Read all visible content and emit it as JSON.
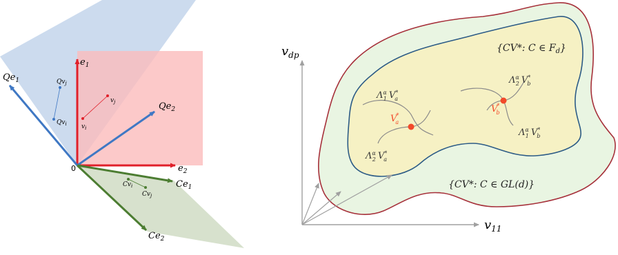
{
  "left_diagram": {
    "colors": {
      "blue_plane": "#c6d7ec",
      "red_plane": "#fbbcbc",
      "green_plane": "#d5dfca",
      "red_axis": "#e0202a",
      "blue_axis": "#3f78c4",
      "green_axis": "#4c7d32"
    },
    "labels": {
      "origin": "0",
      "e1_base": "e",
      "e1_sub": "1",
      "e2_base": "e",
      "e2_sub": "2",
      "Qe1_base": "Qe",
      "Qe1_sub": "1",
      "Qe2_base": "Qe",
      "Qe2_sub": "2",
      "Ce1_base": "Ce",
      "Ce1_sub": "1",
      "Ce2_base": "Ce",
      "Ce2_sub": "2",
      "vi_base": "v",
      "vi_sub": "i",
      "vj_base": "v",
      "vj_sub": "j",
      "Qvi_base": "Qv",
      "Qvi_sub": "i",
      "Qvj_base": "Qv",
      "Qvj_sub": "j",
      "Cvi_base": "Cv",
      "Cvi_sub": "i",
      "Cvj_base": "Cv",
      "Cvj_sub": "j"
    }
  },
  "right_diagram": {
    "colors": {
      "outer_region": "#e9f5e2",
      "outer_border": "#a6303a",
      "inner_region": "#f6f1c4",
      "inner_border": "#2c5b86",
      "curve": "#8a8a8a",
      "point": "#f24a2a",
      "axis": "#a0a0a0"
    },
    "labels": {
      "y_axis_base": "v",
      "y_axis_sub": "dp",
      "x_axis_base": "v",
      "x_axis_sub": "11",
      "Fd_set": "{CV*: C ∈ F",
      "Fd_sub": "d",
      "Fd_close": "}",
      "GL_set": "{CV*: C ∈ GL(d)}",
      "Va": "V",
      "Va_sub": "a",
      "Va_sup": "*",
      "Vb": "V",
      "Vb_sub": "b",
      "Vb_sup": "*",
      "lam1_Va": "Λ",
      "lam2_Va": "Λ",
      "lam1_Vb": "Λ",
      "lam2_Vb": "Λ",
      "sub1": "1",
      "sub2": "2",
      "alpha": "α",
      "V": "V",
      "a": "a",
      "b": "b",
      "star": "*"
    }
  }
}
